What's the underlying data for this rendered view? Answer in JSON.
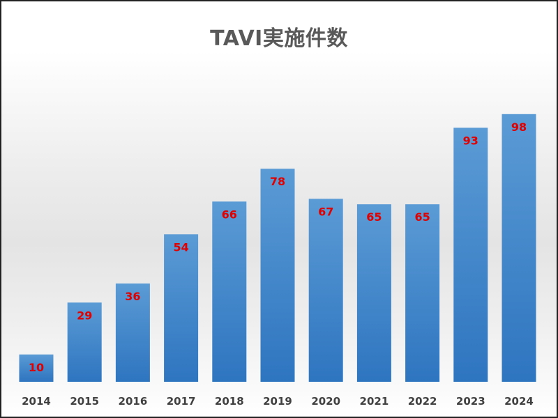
{
  "chart_data": {
    "type": "bar",
    "title": "TAVI実施件数",
    "xlabel": "",
    "ylabel": "",
    "categories": [
      "2014",
      "2015",
      "2016",
      "2017",
      "2018",
      "2019",
      "2020",
      "2021",
      "2022",
      "2023",
      "2024"
    ],
    "values": [
      10,
      29,
      36,
      54,
      66,
      78,
      67,
      65,
      65,
      93,
      98
    ],
    "ylim": [
      0,
      100
    ],
    "grid": false,
    "legend": "none",
    "data_labels": true,
    "colors": {
      "bar_top": "#5b9bd5",
      "bar_bottom": "#2e75c0",
      "data_label": "#e00000",
      "tick_label": "#404040",
      "title": "#595959"
    }
  }
}
